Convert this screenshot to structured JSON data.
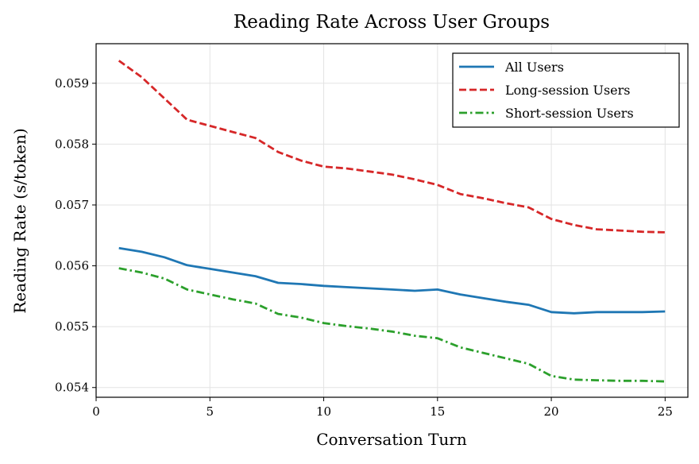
{
  "chart_data": {
    "type": "line",
    "title": "Reading Rate Across User Groups",
    "xlabel": "Conversation Turn",
    "ylabel": "Reading Rate (s/token)",
    "xlim": [
      0,
      26
    ],
    "ylim": [
      0.05384,
      0.05965
    ],
    "xticks": [
      0,
      5,
      10,
      15,
      20,
      25
    ],
    "yticks": [
      0.054,
      0.055,
      0.056,
      0.057,
      0.058,
      0.059
    ],
    "ytick_labels": [
      "0.054",
      "0.055",
      "0.056",
      "0.057",
      "0.058",
      "0.059"
    ],
    "grid": true,
    "legend_position": "top-right",
    "x": [
      1,
      2,
      3,
      4,
      5,
      6,
      7,
      8,
      9,
      10,
      11,
      12,
      13,
      14,
      15,
      16,
      17,
      18,
      19,
      20,
      21,
      22,
      23,
      24,
      25
    ],
    "series": [
      {
        "name": "All Users",
        "color": "#1f77b4",
        "style": "solid",
        "values": [
          0.05629,
          0.05623,
          0.05614,
          0.05601,
          0.05595,
          0.05589,
          0.05583,
          0.05572,
          0.0557,
          0.05567,
          0.05565,
          0.05563,
          0.05561,
          0.05559,
          0.05561,
          0.05553,
          0.05547,
          0.05541,
          0.05536,
          0.05524,
          0.05522,
          0.05524,
          0.05524,
          0.05524,
          0.05525
        ]
      },
      {
        "name": "Long-session Users",
        "color": "#d62728",
        "style": "dashed",
        "values": [
          0.05937,
          0.0591,
          0.05875,
          0.0584,
          0.0583,
          0.0582,
          0.0581,
          0.05787,
          0.05773,
          0.05763,
          0.0576,
          0.05755,
          0.0575,
          0.05742,
          0.05733,
          0.05718,
          0.05711,
          0.05703,
          0.05696,
          0.05677,
          0.05667,
          0.0566,
          0.05658,
          0.05656,
          0.05655
        ]
      },
      {
        "name": "Short-session Users",
        "color": "#2ca02c",
        "style": "dashdot",
        "values": [
          0.05596,
          0.05589,
          0.05579,
          0.05561,
          0.05553,
          0.05545,
          0.05538,
          0.05521,
          0.05515,
          0.05506,
          0.05501,
          0.05497,
          0.05492,
          0.05485,
          0.05481,
          0.05466,
          0.05457,
          0.05448,
          0.05439,
          0.05419,
          0.05413,
          0.05412,
          0.05411,
          0.05411,
          0.0541
        ]
      }
    ]
  }
}
